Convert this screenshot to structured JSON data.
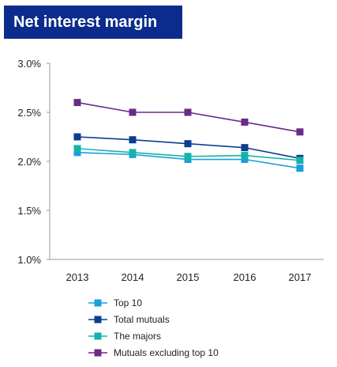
{
  "chart_data": {
    "type": "line",
    "title": "Net interest margin",
    "xlabel": "",
    "ylabel": "",
    "x": [
      "2013",
      "2014",
      "2015",
      "2016",
      "2017"
    ],
    "ylim": [
      1.0,
      3.0
    ],
    "yticks": [
      1.0,
      1.5,
      2.0,
      2.5,
      3.0
    ],
    "ytick_labels": [
      "1.0%",
      "1.5%",
      "2.0%",
      "2.5%",
      "3.0%"
    ],
    "grid": false,
    "legend_position": "bottom",
    "series": [
      {
        "name": "Top 10",
        "color": "#1a9fdb",
        "marker": "square",
        "values": [
          2.09,
          2.07,
          2.02,
          2.02,
          1.93
        ]
      },
      {
        "name": "Total mutuals",
        "color": "#0b3d91",
        "marker": "square",
        "values": [
          2.25,
          2.22,
          2.18,
          2.14,
          2.03
        ]
      },
      {
        "name": "The majors",
        "color": "#14b3a8",
        "marker": "square",
        "values": [
          2.13,
          2.09,
          2.05,
          2.06,
          2.01
        ]
      },
      {
        "name": "Mutuals excluding top 10",
        "color": "#6a2a88",
        "marker": "square",
        "values": [
          2.6,
          2.5,
          2.5,
          2.4,
          2.3
        ]
      }
    ]
  }
}
